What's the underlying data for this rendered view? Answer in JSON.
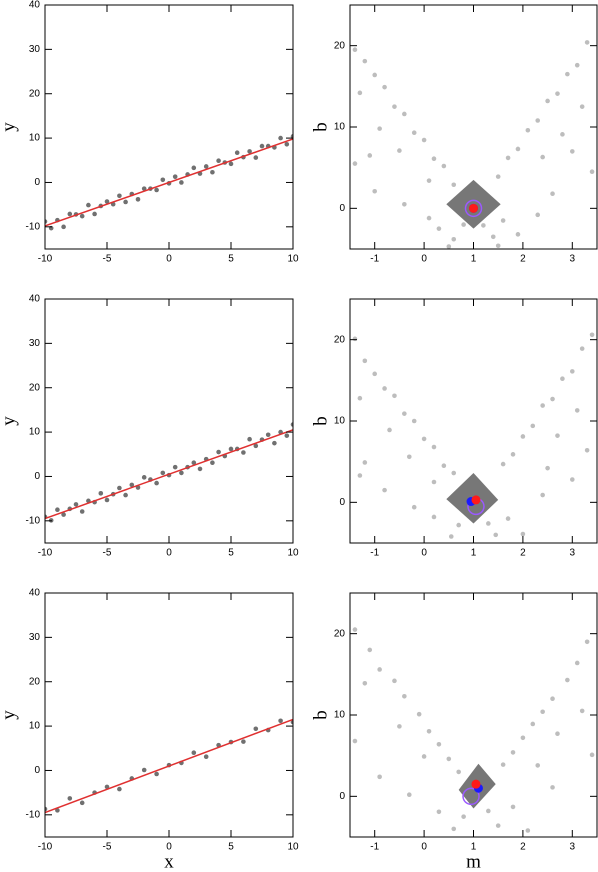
{
  "chart_data": [
    {
      "type": "scatter",
      "ylabel": "y",
      "xlim": [
        -10,
        10
      ],
      "ylim": [
        -15,
        40
      ],
      "xticks": [
        -10,
        -5,
        0,
        5,
        10
      ],
      "yticks": [
        -10,
        0,
        10,
        20,
        30,
        40
      ],
      "series": [
        {
          "mode": "points",
          "color": "#707070",
          "x": [
            -10,
            -9.5,
            -9,
            -8.5,
            -8,
            -7.5,
            -7,
            -6.5,
            -6,
            -5.5,
            -5,
            -4.5,
            -4,
            -3.5,
            -3,
            -2.5,
            -2,
            -1.5,
            -1,
            -0.5,
            0,
            0.5,
            1,
            1.5,
            2,
            2.5,
            3,
            3.5,
            4,
            4.5,
            5,
            5.5,
            6,
            6.5,
            7,
            7.5,
            8,
            8.5,
            9,
            9.5,
            10
          ],
          "y": [
            -8.8,
            -10.3,
            -8.5,
            -10,
            -7.1,
            -7.2,
            -7.6,
            -5.1,
            -7.1,
            -5.3,
            -4.3,
            -4.9,
            -3,
            -4.4,
            -2.6,
            -3.8,
            -1.4,
            -1.4,
            -1.7,
            0.6,
            -0.2,
            1.3,
            0,
            1.8,
            3.3,
            2,
            3.6,
            2.3,
            4.9,
            4.5,
            4.2,
            6.7,
            5.7,
            7,
            5.6,
            8.2,
            8.2,
            7.9,
            10,
            8.6,
            10.4
          ]
        },
        {
          "mode": "line",
          "color": "#e03030",
          "x": [
            -10,
            10
          ],
          "y": [
            -9.8,
            9.8
          ]
        }
      ]
    },
    {
      "type": "scatter",
      "ylabel": "b",
      "xlim": [
        -1.5,
        3.5
      ],
      "ylim": [
        -5,
        25
      ],
      "xticks": [
        -1,
        0,
        1,
        2,
        3
      ],
      "yticks": [
        0,
        10,
        20
      ],
      "series": [
        {
          "mode": "points",
          "color": "#bdbdbd",
          "x": [
            -1.4,
            -1.2,
            -1.0,
            -0.8,
            -0.6,
            -0.4,
            -0.2,
            0.0,
            0.2,
            0.4,
            0.6,
            -1.3,
            -0.9,
            -1.1,
            -0.5,
            0.1,
            3.3,
            3.1,
            2.9,
            2.7,
            2.5,
            2.3,
            2.1,
            1.9,
            1.7,
            1.5,
            3.2,
            2.8,
            3.0,
            2.4,
            1.2,
            1.4,
            1.5,
            0.8,
            0.6,
            0.5,
            1.6,
            0.3,
            1.9,
            0.1,
            2.3,
            -0.4,
            2.6,
            -1.0,
            3.4,
            -1.4
          ],
          "y": [
            19.5,
            18.1,
            16.4,
            14.9,
            12.5,
            11.6,
            9.3,
            8.4,
            6.1,
            5.2,
            2.9,
            14.2,
            9.8,
            6.5,
            7.1,
            3.4,
            20.4,
            17.6,
            16.5,
            14.1,
            13.2,
            10.8,
            9.6,
            7.3,
            6.2,
            3.9,
            12.5,
            9.1,
            7.0,
            6.3,
            -2.1,
            -3.5,
            -4.6,
            -2.0,
            -3.8,
            -4.7,
            -1.5,
            -2.5,
            -3.2,
            -1.2,
            -0.8,
            0.5,
            1.8,
            2.1,
            4.5,
            5.5
          ]
        },
        {
          "mode": "polygon",
          "color": "#777777",
          "x": [
            1,
            1.55,
            1,
            0.45
          ],
          "y": [
            3.5,
            0.5,
            -2.5,
            0.5
          ]
        },
        {
          "mode": "ring",
          "color": "#9b59ff",
          "x": [
            1
          ],
          "y": [
            0
          ]
        },
        {
          "mode": "dot",
          "color": "#1a1aff",
          "x": [
            1
          ],
          "y": [
            0
          ]
        },
        {
          "mode": "dot",
          "color": "#ff1a1a",
          "x": [
            1
          ],
          "y": [
            0
          ]
        }
      ]
    },
    {
      "type": "scatter",
      "ylabel": "y",
      "xlim": [
        -10,
        10
      ],
      "ylim": [
        -15,
        40
      ],
      "xticks": [
        -10,
        -5,
        0,
        5,
        10
      ],
      "yticks": [
        -10,
        0,
        10,
        20,
        30,
        40
      ],
      "series": [
        {
          "mode": "points",
          "color": "#707070",
          "x": [
            -10,
            -9.5,
            -9,
            -8.5,
            -8,
            -7.5,
            -7,
            -6.5,
            -6,
            -5.5,
            -5,
            -4.5,
            -4,
            -3.5,
            -3,
            -2.5,
            -2,
            -1.5,
            -1,
            -0.5,
            0,
            0.5,
            1,
            1.5,
            2,
            2.5,
            3,
            3.5,
            4,
            4.5,
            5,
            5.5,
            6,
            6.5,
            7,
            7.5,
            8,
            8.5,
            9,
            9.5,
            10
          ],
          "y": [
            -9.1,
            -9.9,
            -7.5,
            -8.6,
            -7.3,
            -6.3,
            -7.9,
            -5.5,
            -5.8,
            -3.8,
            -5.3,
            -4,
            -2.6,
            -4.2,
            -1.9,
            -2.5,
            -0.2,
            -0.7,
            -1.5,
            0.8,
            0.3,
            2.1,
            0.8,
            2.1,
            3.1,
            1.7,
            3.9,
            3.1,
            5.5,
            4.6,
            6.2,
            6.2,
            5.4,
            8.4,
            6.9,
            8.3,
            9.4,
            7.5,
            10,
            9.2,
            11.7
          ]
        },
        {
          "mode": "line",
          "color": "#e03030",
          "x": [
            -10,
            10
          ],
          "y": [
            -9.5,
            10.5
          ]
        }
      ]
    },
    {
      "type": "scatter",
      "ylabel": "b",
      "xlim": [
        -1.5,
        3.5
      ],
      "ylim": [
        -5,
        25
      ],
      "xticks": [
        -1,
        0,
        1,
        2,
        3
      ],
      "yticks": [
        0,
        10,
        20
      ],
      "series": [
        {
          "mode": "points",
          "color": "#bdbdbd",
          "x": [
            -1.4,
            -1.2,
            -1.0,
            -0.8,
            -0.6,
            -0.4,
            -0.2,
            0.0,
            0.2,
            0.4,
            0.6,
            -1.3,
            -0.7,
            -1.2,
            -0.3,
            0.2,
            3.4,
            3.2,
            3.0,
            2.8,
            2.6,
            2.4,
            2.2,
            2.0,
            1.8,
            1.6,
            3.1,
            2.7,
            3.3,
            2.5,
            1.3,
            1.45,
            0.7,
            0.55,
            1.7,
            0.2,
            2.0,
            -0.2,
            2.4,
            -0.8,
            3.0,
            -1.3
          ],
          "y": [
            20.1,
            17.4,
            15.8,
            14.0,
            13.1,
            10.9,
            10.0,
            7.8,
            6.8,
            4.5,
            3.6,
            12.8,
            8.9,
            4.9,
            5.6,
            2.5,
            20.6,
            18.9,
            16.1,
            15.2,
            12.7,
            11.9,
            9.4,
            8.1,
            5.9,
            4.7,
            11.3,
            8.2,
            6.4,
            4.2,
            -2.6,
            -4.0,
            -2.8,
            -4.2,
            -2.0,
            -1.8,
            -3.9,
            -0.6,
            0.9,
            1.5,
            2.8,
            3.3
          ]
        },
        {
          "mode": "polygon",
          "color": "#777777",
          "x": [
            1,
            1.5,
            1,
            0.45
          ],
          "y": [
            3.6,
            0.3,
            -2.6,
            0.4
          ]
        },
        {
          "mode": "ring",
          "color": "#9b59ff",
          "x": [
            1.05
          ],
          "y": [
            -0.5
          ]
        },
        {
          "mode": "dot",
          "color": "#1a1aff",
          "x": [
            0.95
          ],
          "y": [
            0.1
          ]
        },
        {
          "mode": "dot",
          "color": "#ff1a1a",
          "x": [
            1.05
          ],
          "y": [
            0.3
          ]
        }
      ]
    },
    {
      "type": "scatter",
      "xlabel": "x",
      "ylabel": "y",
      "xlim": [
        -10,
        10
      ],
      "ylim": [
        -15,
        40
      ],
      "xticks": [
        -10,
        -5,
        0,
        5,
        10
      ],
      "yticks": [
        -10,
        0,
        10,
        20,
        30,
        40
      ],
      "series": [
        {
          "mode": "points",
          "color": "#707070",
          "x": [
            -10,
            -9,
            -8,
            -7,
            -6,
            -5,
            -4,
            -3,
            -2,
            -1,
            0,
            1,
            2,
            3,
            4,
            5,
            6,
            7,
            8,
            9,
            10
          ],
          "y": [
            -8.7,
            -9.0,
            -6.3,
            -7.3,
            -5.0,
            -3.7,
            -4.2,
            -1.8,
            0.1,
            -0.8,
            1.2,
            1.7,
            4.0,
            3.1,
            5.7,
            6.4,
            6.5,
            9.4,
            9.1,
            11.2,
            10.9
          ]
        },
        {
          "mode": "line",
          "color": "#e03030",
          "x": [
            -10,
            10
          ],
          "y": [
            -9.5,
            11.5
          ]
        }
      ]
    },
    {
      "type": "scatter",
      "xlabel": "m",
      "ylabel": "b",
      "xlim": [
        -1.5,
        3.5
      ],
      "ylim": [
        -5,
        25
      ],
      "xticks": [
        -1,
        0,
        1,
        2,
        3
      ],
      "yticks": [
        0,
        10,
        20
      ],
      "series": [
        {
          "mode": "points",
          "color": "#bdbdbd",
          "x": [
            -1.4,
            -1.1,
            -0.9,
            -0.6,
            -0.4,
            -0.1,
            0.1,
            0.3,
            0.5,
            0.7,
            -1.2,
            -0.5,
            0.0,
            -1.4,
            3.3,
            3.1,
            2.9,
            2.6,
            2.4,
            2.2,
            2.0,
            1.8,
            1.6,
            3.2,
            2.7,
            3.4,
            2.3,
            1.3,
            1.5,
            0.8,
            0.6,
            1.8,
            0.3,
            2.1,
            -0.3,
            2.6,
            -0.9
          ],
          "y": [
            20.5,
            18.0,
            15.6,
            14.2,
            12.3,
            10.1,
            8.0,
            6.4,
            4.6,
            3.0,
            13.9,
            8.6,
            4.9,
            6.8,
            19.0,
            16.4,
            14.3,
            12.0,
            10.4,
            8.9,
            7.2,
            5.4,
            3.9,
            10.5,
            7.7,
            5.1,
            3.8,
            -1.8,
            -3.6,
            -2.5,
            -4.0,
            -1.3,
            -1.9,
            -4.2,
            0.2,
            1.1,
            2.4
          ]
        },
        {
          "mode": "polygon",
          "color": "#777777",
          "x": [
            1.1,
            1.45,
            1.0,
            0.7
          ],
          "y": [
            4.0,
            1.5,
            -1.5,
            0.8
          ]
        },
        {
          "mode": "ring",
          "color": "#9b59ff",
          "x": [
            0.95
          ],
          "y": [
            0
          ]
        },
        {
          "mode": "dot",
          "color": "#1a1aff",
          "x": [
            1.1
          ],
          "y": [
            1
          ]
        },
        {
          "mode": "dot",
          "color": "#ff1a1a",
          "x": [
            1.05
          ],
          "y": [
            1.5
          ]
        }
      ]
    }
  ]
}
